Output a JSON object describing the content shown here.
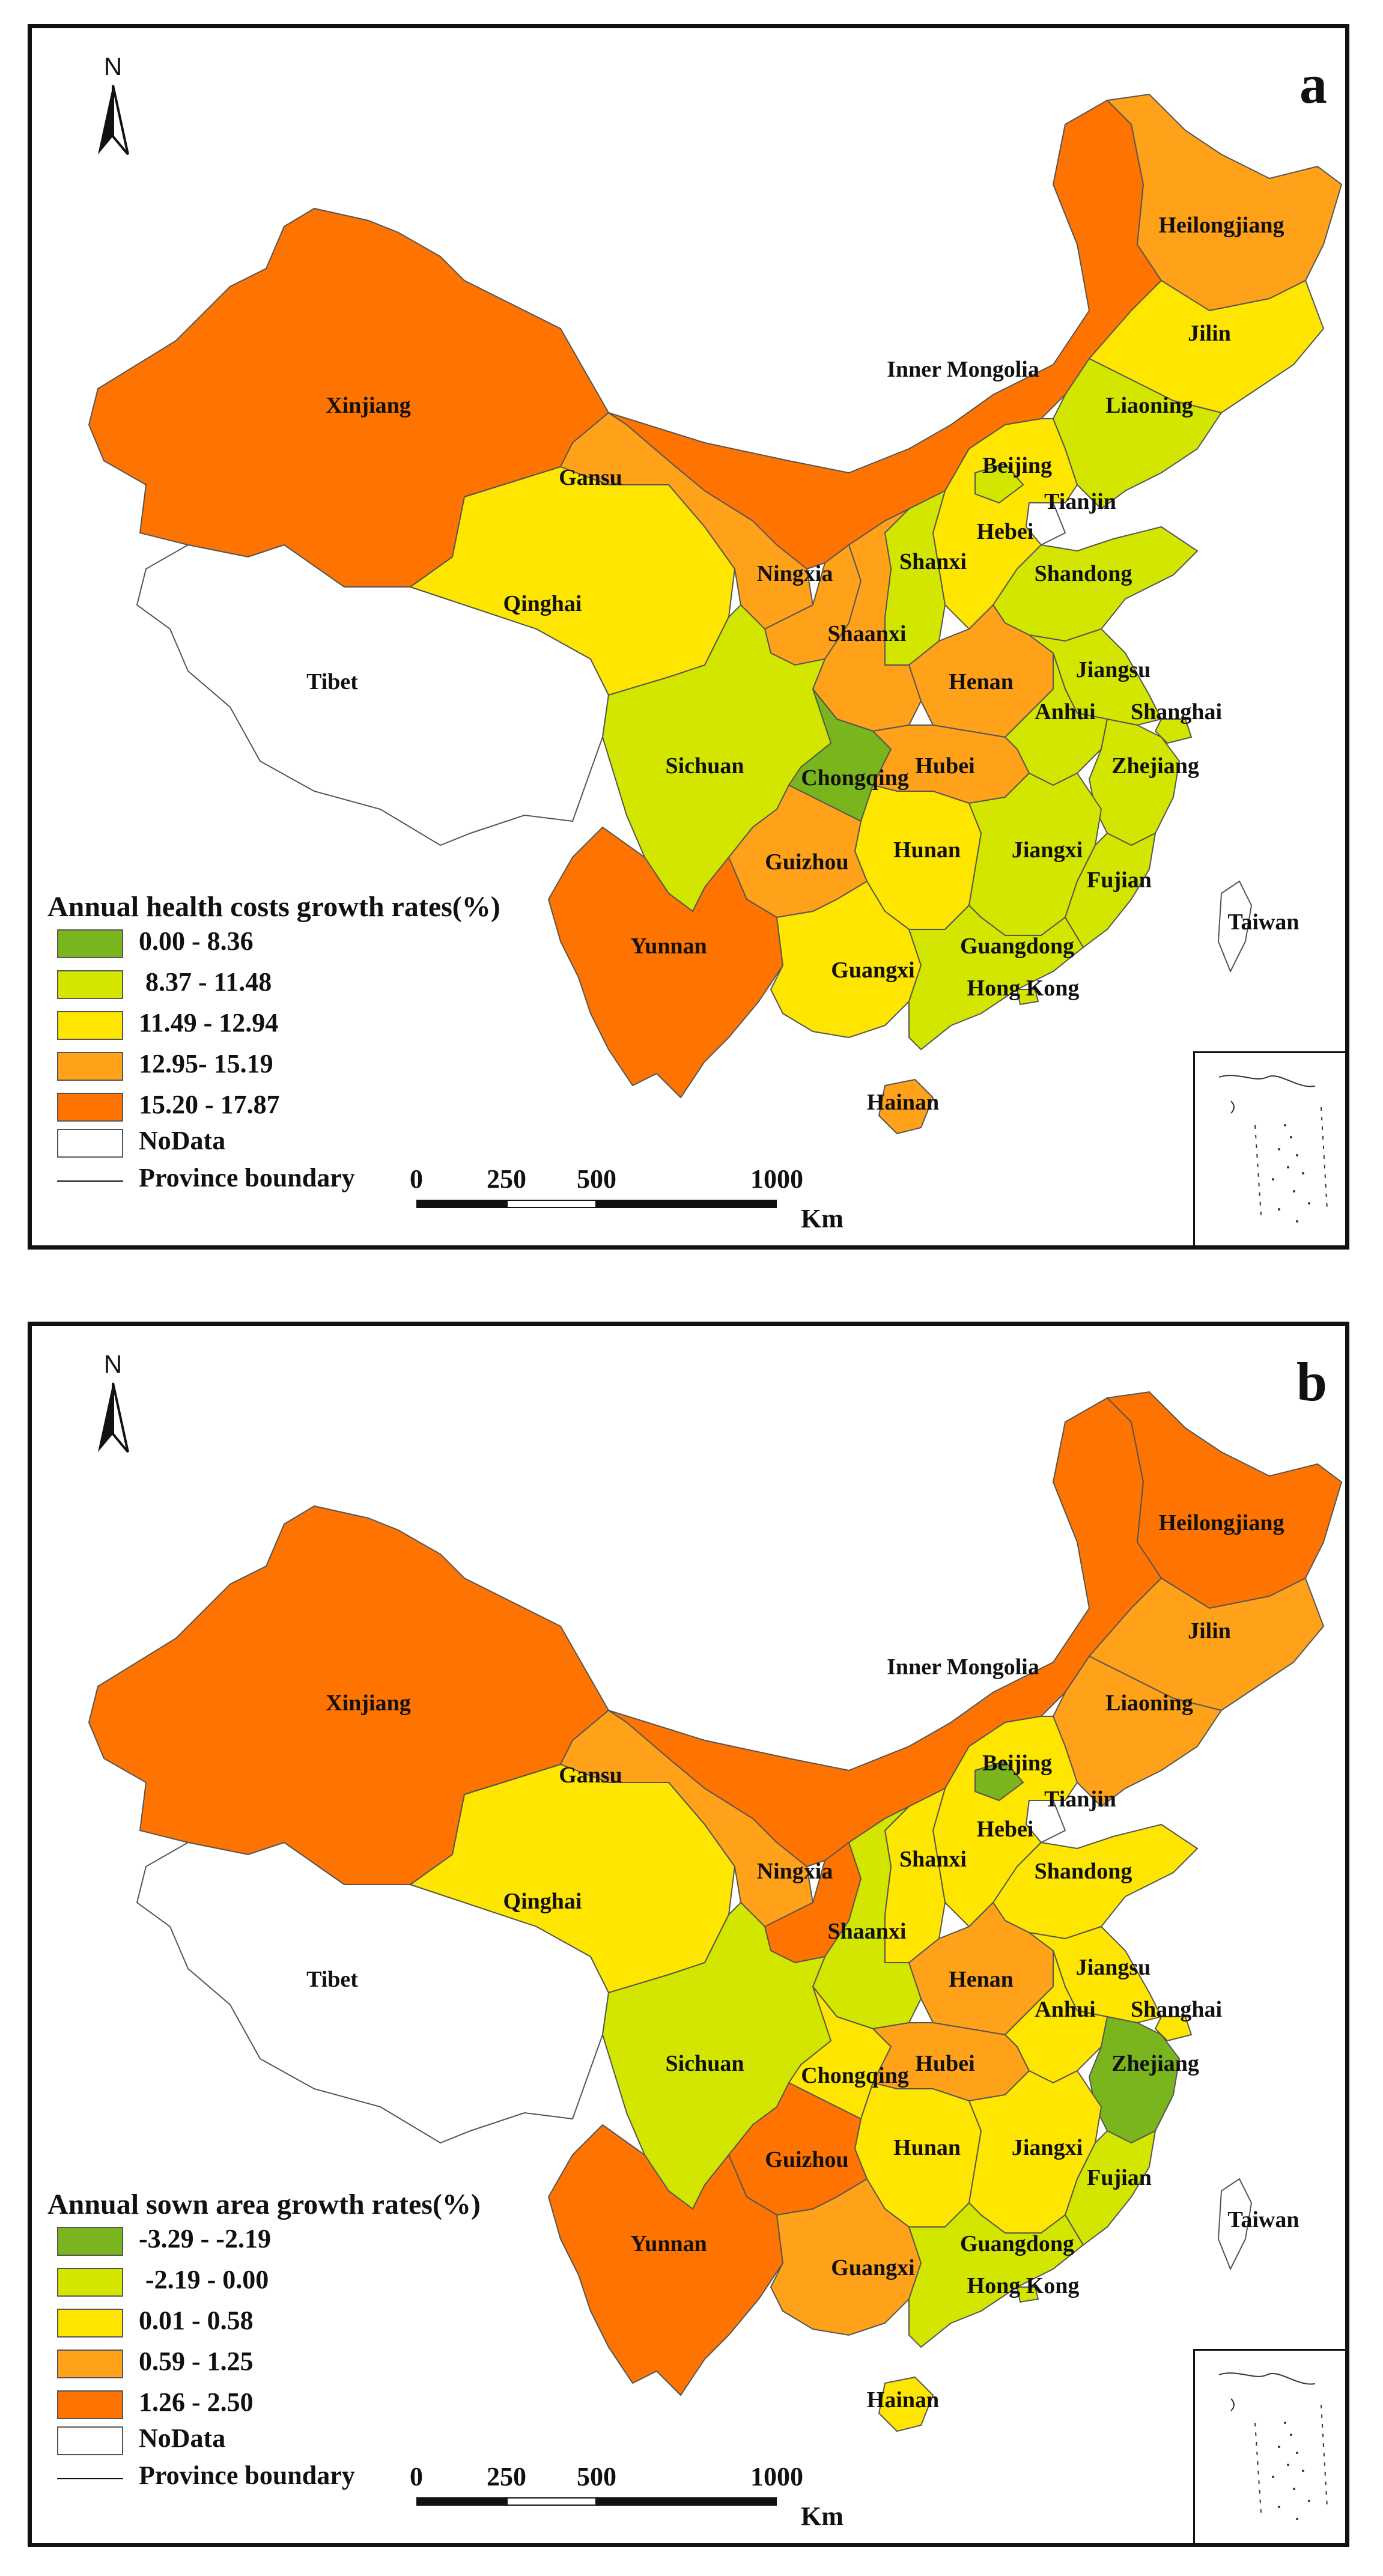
{
  "panels": [
    {
      "letter": "a",
      "north": "N",
      "legend": {
        "title": "Annual health costs growth rates(%)",
        "classes": [
          {
            "label": "0.00 - 8.36",
            "color": "#7ab51d"
          },
          {
            "label": " 8.37 - 11.48",
            "color": "#d3e600"
          },
          {
            "label": "11.49 - 12.94",
            "color": "#ffe600"
          },
          {
            "label": "12.95- 15.19",
            "color": "#ffa219"
          },
          {
            "label": "15.20 - 17.87",
            "color": "#ff7300"
          },
          {
            "label": "NoData",
            "color": "#ffffff"
          }
        ],
        "boundary_label": "Province boundary"
      },
      "scale": {
        "ticks": [
          "0",
          "250",
          "500",
          "1000"
        ],
        "unit": "Km"
      },
      "provinces": {
        "Xinjiang": {
          "label": "Xinjiang",
          "class": 4
        },
        "Tibet": {
          "label": "Tibet",
          "class": 5
        },
        "Qinghai": {
          "label": "Qinghai",
          "class": 2
        },
        "Gansu": {
          "label": "Gansu",
          "class": 3
        },
        "InnerMongolia": {
          "label": "Inner Mongolia",
          "class": 4
        },
        "Heilongjiang": {
          "label": "Heilongjiang",
          "class": 3
        },
        "Jilin": {
          "label": "Jilin",
          "class": 2
        },
        "Liaoning": {
          "label": "Liaoning",
          "class": 1
        },
        "Beijing": {
          "label": "Beijing",
          "class": 1
        },
        "Tianjin": {
          "label": "Tianjin",
          "class": 5
        },
        "Hebei": {
          "label": "Hebei",
          "class": 2
        },
        "Shanxi": {
          "label": "Shanxi",
          "class": 1
        },
        "Shandong": {
          "label": "Shandong",
          "class": 1
        },
        "Ningxia": {
          "label": "Ningxia",
          "class": 3
        },
        "Shaanxi": {
          "label": "Shaanxi",
          "class": 3
        },
        "Henan": {
          "label": "Henan",
          "class": 3
        },
        "Jiangsu": {
          "label": "Jiangsu",
          "class": 1
        },
        "Anhui": {
          "label": "Anhui",
          "class": 1
        },
        "Shanghai": {
          "label": "Shanghai",
          "class": 1
        },
        "Sichuan": {
          "label": "Sichuan",
          "class": 1
        },
        "Chongqing": {
          "label": "Chongqing",
          "class": 0
        },
        "Hubei": {
          "label": "Hubei",
          "class": 3
        },
        "Zhejiang": {
          "label": "Zhejiang",
          "class": 1
        },
        "Hunan": {
          "label": "Hunan",
          "class": 2
        },
        "Jiangxi": {
          "label": "Jiangxi",
          "class": 1
        },
        "Guizhou": {
          "label": "Guizhou",
          "class": 3
        },
        "Fujian": {
          "label": "Fujian",
          "class": 1
        },
        "Yunnan": {
          "label": "Yunnan",
          "class": 4
        },
        "Guangxi": {
          "label": "Guangxi",
          "class": 2
        },
        "Guangdong": {
          "label": "Guangdong",
          "class": 1
        },
        "HongKong": {
          "label": "Hong Kong",
          "class": 1
        },
        "Taiwan": {
          "label": "Taiwan",
          "class": 5
        },
        "Hainan": {
          "label": "Hainan",
          "class": 3
        }
      }
    },
    {
      "letter": "b",
      "north": "N",
      "legend": {
        "title": "Annual  sown area growth rates(%)",
        "classes": [
          {
            "label": "-3.29 - -2.19",
            "color": "#7ab51d"
          },
          {
            "label": " -2.19 - 0.00",
            "color": "#d3e600"
          },
          {
            "label": "0.01 - 0.58",
            "color": "#ffe600"
          },
          {
            "label": "0.59 - 1.25",
            "color": "#ffa219"
          },
          {
            "label": "1.26 - 2.50",
            "color": "#ff7300"
          },
          {
            "label": "NoData",
            "color": "#ffffff"
          }
        ],
        "boundary_label": "Province boundary"
      },
      "scale": {
        "ticks": [
          "0",
          "250",
          "500",
          "1000"
        ],
        "unit": "Km"
      },
      "provinces": {
        "Xinjiang": {
          "label": "Xinjiang",
          "class": 4
        },
        "Tibet": {
          "label": "Tibet",
          "class": 5
        },
        "Qinghai": {
          "label": "Qinghai",
          "class": 2
        },
        "Gansu": {
          "label": "Gansu",
          "class": 3
        },
        "InnerMongolia": {
          "label": "Inner Mongolia",
          "class": 4
        },
        "Heilongjiang": {
          "label": "Heilongjiang",
          "class": 4
        },
        "Jilin": {
          "label": "Jilin",
          "class": 3
        },
        "Liaoning": {
          "label": "Liaoning",
          "class": 3
        },
        "Beijing": {
          "label": "Beijing",
          "class": 0
        },
        "Tianjin": {
          "label": "Tianjin",
          "class": 5
        },
        "Hebei": {
          "label": "Hebei",
          "class": 2
        },
        "Shanxi": {
          "label": "Shanxi",
          "class": 2
        },
        "Shandong": {
          "label": "Shandong",
          "class": 2
        },
        "Ningxia": {
          "label": "Ningxia",
          "class": 4
        },
        "Shaanxi": {
          "label": "Shaanxi",
          "class": 1
        },
        "Henan": {
          "label": "Henan",
          "class": 3
        },
        "Jiangsu": {
          "label": "Jiangsu",
          "class": 2
        },
        "Anhui": {
          "label": "Anhui",
          "class": 2
        },
        "Shanghai": {
          "label": "Shanghai",
          "class": 2
        },
        "Sichuan": {
          "label": "Sichuan",
          "class": 1
        },
        "Chongqing": {
          "label": "Chongqing",
          "class": 2
        },
        "Hubei": {
          "label": "Hubei",
          "class": 3
        },
        "Zhejiang": {
          "label": "Zhejiang",
          "class": 0
        },
        "Hunan": {
          "label": "Hunan",
          "class": 2
        },
        "Jiangxi": {
          "label": "Jiangxi",
          "class": 2
        },
        "Guizhou": {
          "label": "Guizhou",
          "class": 4
        },
        "Fujian": {
          "label": "Fujian",
          "class": 1
        },
        "Yunnan": {
          "label": "Yunnan",
          "class": 4
        },
        "Guangxi": {
          "label": "Guangxi",
          "class": 3
        },
        "Guangdong": {
          "label": "Guangdong",
          "class": 1
        },
        "HongKong": {
          "label": "Hong Kong",
          "class": 1
        },
        "Taiwan": {
          "label": "Taiwan",
          "class": 5
        },
        "Hainan": {
          "label": "Hainan",
          "class": 2
        }
      }
    }
  ]
}
